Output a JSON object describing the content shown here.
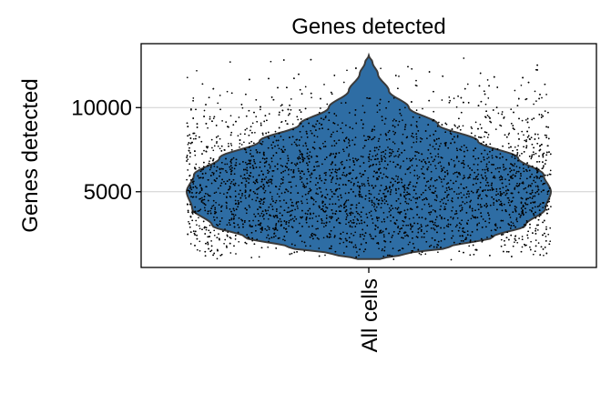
{
  "chart_data": {
    "type": "violin",
    "title": "Genes detected",
    "ylabel": "Genes detected",
    "xlabel": "",
    "categories": [
      "All cells"
    ],
    "y_ticks": [
      5000,
      10000
    ],
    "ylim": [
      500,
      13800
    ],
    "grid": "horizontal",
    "violin_color": "#2e6da4",
    "violin_edge_color": "#3a3a3a",
    "point_color": "#000000",
    "distribution": {
      "min": 1000,
      "max": 13100,
      "density_profile": [
        {
          "genes": 1000,
          "relative_width": 0.06
        },
        {
          "genes": 1300,
          "relative_width": 0.2
        },
        {
          "genes": 1700,
          "relative_width": 0.44
        },
        {
          "genes": 2300,
          "relative_width": 0.68
        },
        {
          "genes": 3000,
          "relative_width": 0.86
        },
        {
          "genes": 4000,
          "relative_width": 0.97
        },
        {
          "genes": 5000,
          "relative_width": 1.0
        },
        {
          "genes": 6000,
          "relative_width": 0.96
        },
        {
          "genes": 7000,
          "relative_width": 0.82
        },
        {
          "genes": 8000,
          "relative_width": 0.6
        },
        {
          "genes": 9000,
          "relative_width": 0.38
        },
        {
          "genes": 10000,
          "relative_width": 0.22
        },
        {
          "genes": 11000,
          "relative_width": 0.11
        },
        {
          "genes": 12000,
          "relative_width": 0.05
        },
        {
          "genes": 12700,
          "relative_width": 0.02
        },
        {
          "genes": 13100,
          "relative_width": 0.0
        }
      ]
    }
  }
}
